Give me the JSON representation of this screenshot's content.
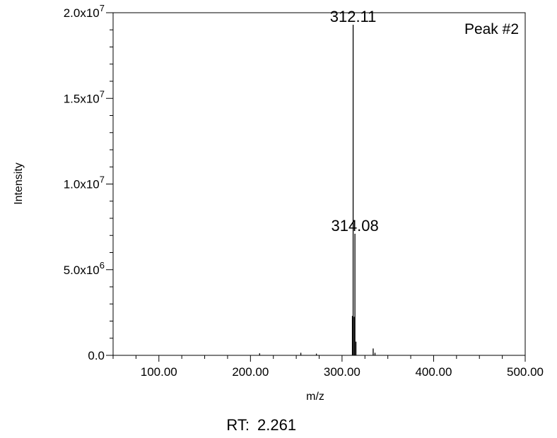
{
  "chart_data": {
    "type": "bar",
    "title": "",
    "xlabel": "m/z",
    "ylabel": "Intensity",
    "xlim": [
      50,
      500
    ],
    "ylim": [
      0,
      20000000
    ],
    "x_ticks": [
      "100.00",
      "200.00",
      "300.00",
      "400.00",
      "500.00"
    ],
    "y_ticks": [
      {
        "mantissa": "0.0",
        "exp": ""
      },
      {
        "mantissa": "5.0x10",
        "exp": "6"
      },
      {
        "mantissa": "1.0x10",
        "exp": "7"
      },
      {
        "mantissa": "1.5x10",
        "exp": "7"
      },
      {
        "mantissa": "2.0x10",
        "exp": "7"
      }
    ],
    "annotation": "Peak #2",
    "footer": {
      "label": "RT:",
      "value": "2.261"
    },
    "peaks": [
      {
        "mz": 210.0,
        "intensity": 120000
      },
      {
        "mz": 255.0,
        "intensity": 150000
      },
      {
        "mz": 272.0,
        "intensity": 100000
      },
      {
        "mz": 311.3,
        "intensity": 2300000
      },
      {
        "mz": 312.11,
        "intensity": 19300000,
        "label": "312.11"
      },
      {
        "mz": 313.3,
        "intensity": 2250000
      },
      {
        "mz": 314.08,
        "intensity": 7100000,
        "label": "314.08"
      },
      {
        "mz": 315.2,
        "intensity": 800000
      },
      {
        "mz": 334.0,
        "intensity": 400000
      },
      {
        "mz": 336.0,
        "intensity": 150000
      }
    ]
  }
}
